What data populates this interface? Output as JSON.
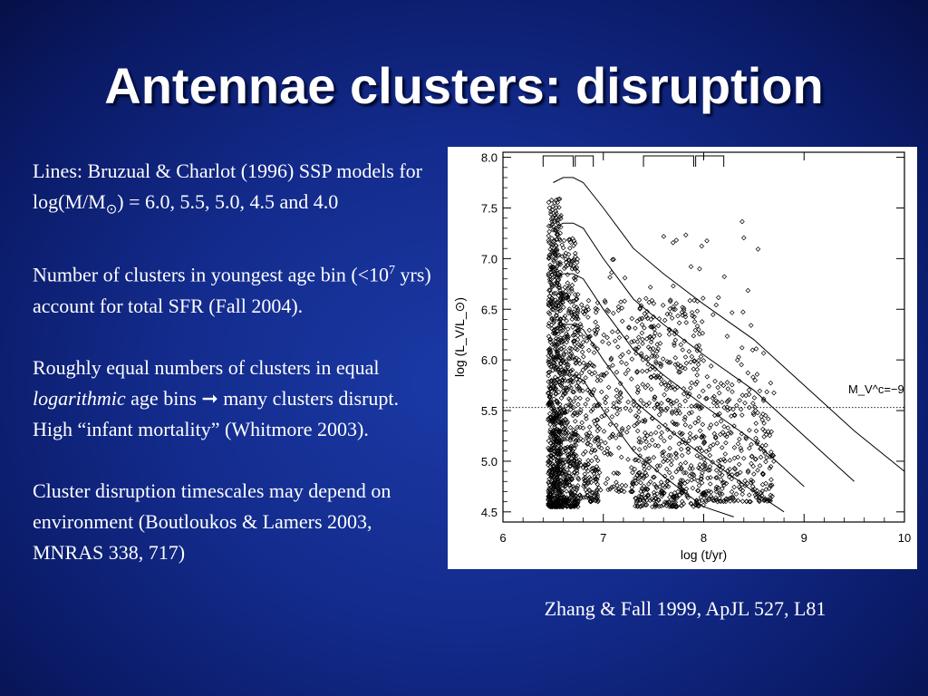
{
  "slide": {
    "title": "Antennae clusters: disruption",
    "caption": "Zhang & Fall 1999, ApJL 527, L81"
  },
  "text": {
    "p1_a": "Lines: Bruzual & Charlot (1996) SSP models for log(M/M",
    "p1_sub": "⊙",
    "p1_b": ") = 6.0, 5.5, 5.0, 4.5 and 4.0",
    "p2_a": "Number of clusters in youngest age bin (<10",
    "p2_sup": "7",
    "p2_b": " yrs) account for total SFR (Fall 2004).",
    "p3_a": "Roughly equal numbers of clusters in equal ",
    "p3_em": "logarithmic",
    "p3_b": " age bins ➞ many clusters disrupt. High “infant mortality” (Whitmore 2003).",
    "p4": "Cluster disruption timescales may depend on environment (Boutloukos & Lamers 2003, MNRAS 338, 717)"
  },
  "chart_data": {
    "type": "scatter",
    "xlabel": "log (t/yr)",
    "ylabel": "log (L_V/L_⊙)",
    "xlim": [
      6,
      10
    ],
    "ylim": [
      4.4,
      8.05
    ],
    "x_ticks": [
      "6",
      "7",
      "8",
      "9",
      "10"
    ],
    "y_ticks": [
      "4.5",
      "5.0",
      "5.5",
      "6.0",
      "6.5",
      "7.0",
      "7.5",
      "8.0"
    ],
    "annotation": "M_V^c=−9",
    "threshold_line_y": 5.53,
    "lines": [
      {
        "mass": 6.0,
        "x": [
          6.5,
          6.6,
          6.7,
          6.8,
          7.0,
          7.3,
          7.6,
          8.0,
          8.5,
          9.0,
          9.5,
          10.0
        ],
        "y": [
          7.75,
          7.8,
          7.8,
          7.75,
          7.5,
          7.1,
          6.85,
          6.55,
          6.2,
          5.75,
          5.3,
          4.9
        ]
      },
      {
        "mass": 5.5,
        "x": [
          6.5,
          6.6,
          6.7,
          6.8,
          7.0,
          7.3,
          7.6,
          8.0,
          8.5,
          9.0,
          9.5
        ],
        "y": [
          7.3,
          7.35,
          7.35,
          7.3,
          7.0,
          6.6,
          6.35,
          6.05,
          5.7,
          5.25,
          4.8
        ]
      },
      {
        "mass": 5.0,
        "x": [
          6.5,
          6.6,
          6.7,
          6.8,
          7.0,
          7.3,
          7.6,
          8.0,
          8.5,
          9.0
        ],
        "y": [
          6.8,
          6.85,
          6.85,
          6.8,
          6.5,
          6.1,
          5.85,
          5.55,
          5.2,
          4.75
        ]
      },
      {
        "mass": 4.5,
        "x": [
          6.5,
          6.6,
          6.7,
          6.8,
          7.0,
          7.3,
          7.6,
          8.0,
          8.5,
          8.8
        ],
        "y": [
          6.3,
          6.35,
          6.35,
          6.3,
          6.0,
          5.6,
          5.35,
          5.05,
          4.7,
          4.5
        ]
      },
      {
        "mass": 4.0,
        "x": [
          6.5,
          6.6,
          6.7,
          6.8,
          7.0,
          7.3,
          7.6,
          8.0,
          8.3
        ],
        "y": [
          5.8,
          5.85,
          5.85,
          5.8,
          5.5,
          5.1,
          4.85,
          4.55,
          4.45
        ]
      }
    ],
    "age_bins": [
      [
        6.4,
        6.7
      ],
      [
        6.72,
        6.9
      ],
      [
        7.4,
        7.9
      ],
      [
        7.92,
        8.2
      ]
    ],
    "point_groups": [
      {
        "x": [
          6.45,
          6.58
        ],
        "ymin": 4.55,
        "ylo_center": 5.0,
        "ytop": 7.6,
        "n": 700,
        "weight": "dense"
      },
      {
        "x": [
          6.58,
          6.75
        ],
        "ymin": 4.55,
        "ylo_center": 5.0,
        "ytop": 7.2,
        "n": 450,
        "weight": "dense"
      },
      {
        "x": [
          6.75,
          6.95
        ],
        "ymin": 4.6,
        "ylo_center": 5.0,
        "ytop": 6.6,
        "n": 200,
        "weight": "medium"
      },
      {
        "x": [
          6.95,
          7.3
        ],
        "ymin": 4.7,
        "ylo_center": 5.2,
        "ytop": 6.6,
        "n": 120,
        "weight": "sparse"
      },
      {
        "x": [
          7.3,
          8.0
        ],
        "ymin": 4.55,
        "ylo_center": 5.0,
        "ytop": 6.6,
        "n": 520,
        "weight": "dense"
      },
      {
        "x": [
          8.0,
          8.7
        ],
        "ymin": 4.6,
        "ylo_center": 4.9,
        "ytop": 5.8,
        "n": 280,
        "weight": "medium"
      },
      {
        "x": [
          7.0,
          8.6
        ],
        "ymin": 5.5,
        "ylo_center": 6.0,
        "ytop": 7.4,
        "n": 90,
        "weight": "sparse"
      }
    ]
  }
}
